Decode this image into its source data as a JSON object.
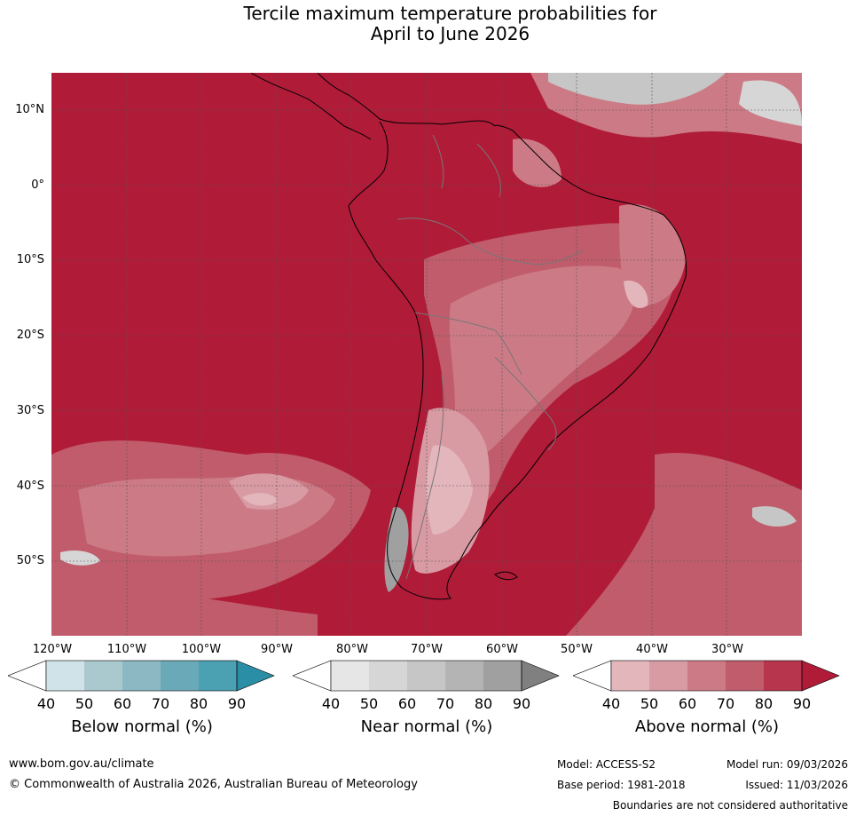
{
  "title": {
    "line1": "Tercile maximum temperature probabilities for",
    "line2": "April to June 2026"
  },
  "map": {
    "lat_labels": [
      "10°N",
      "0°",
      "10°S",
      "20°S",
      "30°S",
      "40°S",
      "50°S"
    ],
    "lon_labels": [
      "120°W",
      "110°W",
      "100°W",
      "90°W",
      "80°W",
      "70°W",
      "60°W",
      "50°W",
      "40°W",
      "30°W"
    ],
    "lat_range": [
      -60,
      15
    ],
    "lon_range": [
      -120,
      -20
    ]
  },
  "legends": [
    {
      "title": "Below normal (%)",
      "ticks": [
        "40",
        "50",
        "60",
        "70",
        "80",
        "90"
      ],
      "colors": [
        "#ffffff",
        "#cfe3e8",
        "#a9c9cf",
        "#8bb8c3",
        "#6aaab8",
        "#4ba1b2",
        "#2a8fa6"
      ]
    },
    {
      "title": "Near normal (%)",
      "ticks": [
        "40",
        "50",
        "60",
        "70",
        "80",
        "90"
      ],
      "colors": [
        "#ffffff",
        "#e6e6e6",
        "#d6d6d6",
        "#c6c6c6",
        "#b4b4b4",
        "#a0a0a0",
        "#808080"
      ]
    },
    {
      "title": "Above normal (%)",
      "ticks": [
        "40",
        "50",
        "60",
        "70",
        "80",
        "90"
      ],
      "colors": [
        "#ffffff",
        "#e3b6bc",
        "#d89aa3",
        "#cc7b86",
        "#c05c6b",
        "#b8364d",
        "#b01b38"
      ]
    }
  ],
  "footer": {
    "website": "www.bom.gov.au/climate",
    "copyright": "© Commonwealth of Australia 2026, Australian Bureau of Meteorology",
    "model": "Model: ACCESS-S2",
    "base_period": "Base period: 1981-2018",
    "model_run": "Model run: 09/03/2026",
    "issued": "Issued: 11/03/2026",
    "disclaimer": "Boundaries are not considered authoritative"
  }
}
